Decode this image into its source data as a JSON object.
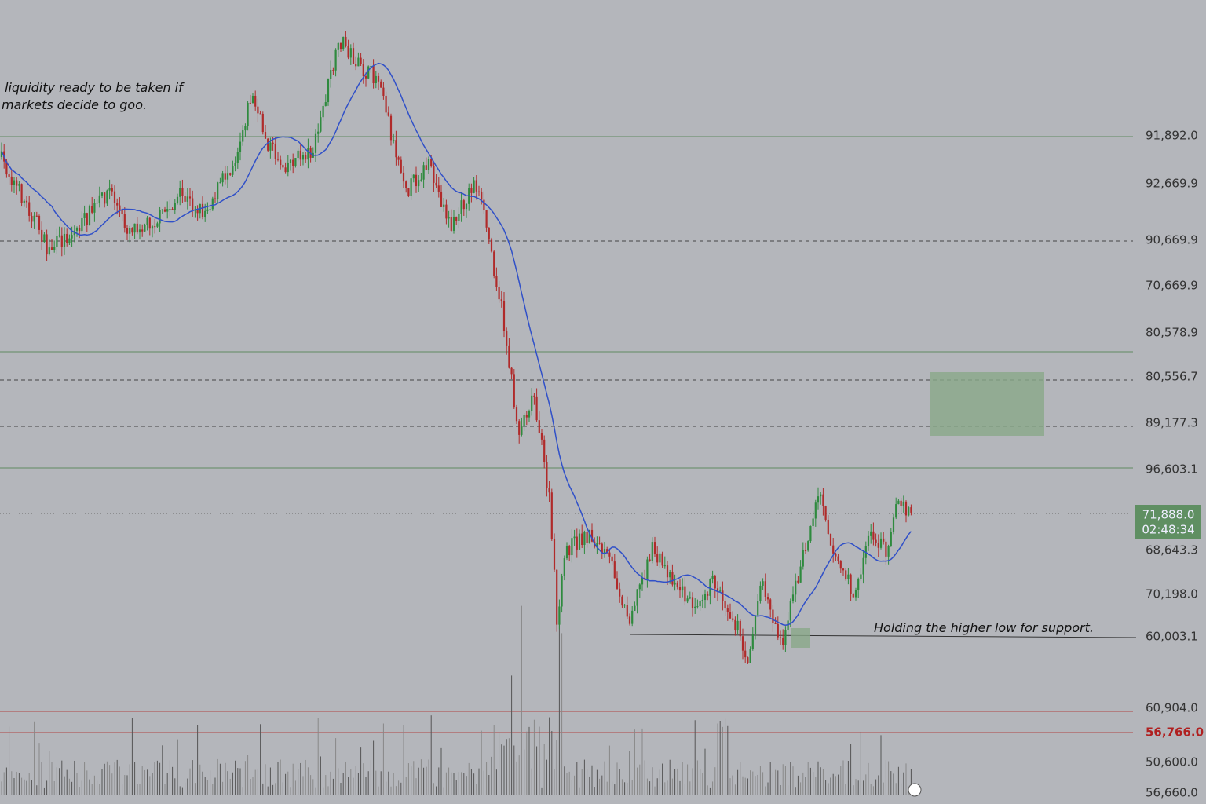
{
  "annotations": {
    "top": [
      "liquidity ready to be taken if",
      "markets decide to goo."
    ],
    "bottom": "Holding the higher low for support."
  },
  "price_labels": [
    "91,892.0",
    "92,669.9",
    "90,669.9",
    "70,669.9",
    "80,578.9",
    "80,556.7",
    "89,177.3",
    "96,603.1",
    "68,643.3",
    "70,198.0",
    "60,003.1",
    "60,904.0",
    "56,766.0",
    "50,600.0",
    "56,660.0"
  ],
  "current_price": {
    "price": "71,888.0",
    "countdown": "02:48:34"
  }
}
